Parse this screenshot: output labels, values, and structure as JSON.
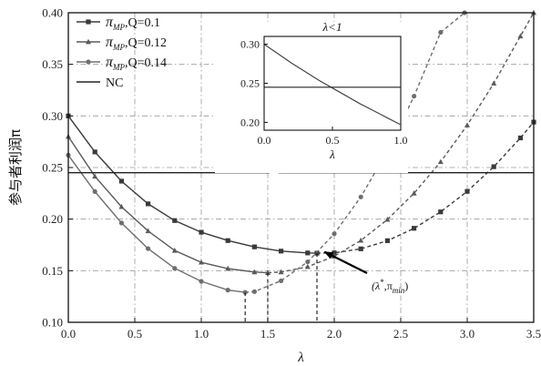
{
  "chart_data": {
    "type": "line",
    "xlabel": "λ",
    "ylabel": "参与者利润π",
    "xlim": [
      0,
      3.5
    ],
    "ylim": [
      0.1,
      0.4
    ],
    "x_ticks": [
      "0.0",
      "0.5",
      "1.0",
      "1.5",
      "2.0",
      "2.5",
      "3.0",
      "3.5"
    ],
    "y_ticks": [
      "0.10",
      "0.15",
      "0.20",
      "0.25",
      "0.30",
      "0.35",
      "0.40"
    ],
    "grid": true,
    "legend_position": "top-left",
    "series": [
      {
        "name": "π_MP, Q=0.1",
        "legend_main": "π",
        "legend_sub": "MP",
        "legend_rest": ",Q=0.1",
        "marker": "square",
        "x": [
          0.0,
          0.2,
          0.4,
          0.6,
          0.8,
          1.0,
          1.2,
          1.4,
          1.6,
          1.8,
          1.87,
          2.0,
          2.2,
          2.4,
          2.6,
          2.8,
          3.0,
          3.2,
          3.4,
          3.5
        ],
        "y": [
          0.3,
          0.2651,
          0.2368,
          0.2148,
          0.1986,
          0.1873,
          0.1792,
          0.1731,
          0.169,
          0.1672,
          0.167,
          0.1673,
          0.1712,
          0.1791,
          0.1911,
          0.207,
          0.2269,
          0.2508,
          0.2787,
          0.294
        ]
      },
      {
        "name": "π_MP, Q=0.12",
        "legend_main": "π",
        "legend_sub": "MP",
        "legend_rest": ",Q=0.12",
        "marker": "triangle",
        "x": [
          0.0,
          0.2,
          0.4,
          0.6,
          0.8,
          1.0,
          1.2,
          1.4,
          1.5,
          1.6,
          1.8,
          2.0,
          2.2,
          2.4,
          2.6,
          2.8,
          3.0,
          3.2,
          3.4,
          3.5
        ],
        "y": [
          0.28,
          0.2414,
          0.212,
          0.1885,
          0.1695,
          0.1581,
          0.1521,
          0.1487,
          0.148,
          0.1487,
          0.1538,
          0.164,
          0.1793,
          0.1996,
          0.225,
          0.2555,
          0.291,
          0.3316,
          0.3773,
          0.4
        ]
      },
      {
        "name": "π_MP, Q=0.14",
        "legend_main": "π",
        "legend_sub": "MP",
        "legend_rest": ",Q=0.14",
        "marker": "circle",
        "x": [
          0.0,
          0.2,
          0.4,
          0.6,
          0.8,
          1.0,
          1.2,
          1.33,
          1.4,
          1.6,
          1.8,
          2.0,
          2.2,
          2.4,
          2.6,
          2.8,
          2.98
        ],
        "y": [
          0.262,
          0.2267,
          0.1963,
          0.1714,
          0.1523,
          0.1397,
          0.1312,
          0.129,
          0.1297,
          0.1402,
          0.1586,
          0.1858,
          0.2215,
          0.266,
          0.3191,
          0.381,
          0.4
        ]
      },
      {
        "name": "NC",
        "marker": "none",
        "x": [
          0.0,
          3.5
        ],
        "y": [
          0.245,
          0.245
        ]
      }
    ],
    "minimum_markers": [
      {
        "x": 1.87,
        "y": 0.167
      },
      {
        "x": 1.5,
        "y": 0.148
      },
      {
        "x": 1.33,
        "y": 0.129
      }
    ],
    "annotation": {
      "text_main": "(λ",
      "text_star": "*",
      "text_mid": ",π",
      "text_sub": "min",
      "text_end": ")",
      "point_x": 1.9,
      "point_y": 0.17
    },
    "inset": {
      "title": "λ<1",
      "xlabel": "λ",
      "xlim": [
        0,
        1.0
      ],
      "ylim": [
        0.19,
        0.31
      ],
      "x_ticks": [
        "0.0",
        "0.5",
        "1.0"
      ],
      "y_ticks": [
        "0.20",
        "0.25",
        "0.30"
      ],
      "curve": {
        "x": [
          0.0,
          0.1,
          0.2,
          0.3,
          0.4,
          0.5,
          0.6,
          0.7,
          0.8,
          0.9,
          1.0
        ],
        "y": [
          0.3,
          0.288,
          0.276,
          0.265,
          0.254,
          0.244,
          0.234,
          0.224,
          0.215,
          0.206,
          0.197
        ]
      },
      "nc_y": 0.245
    }
  }
}
